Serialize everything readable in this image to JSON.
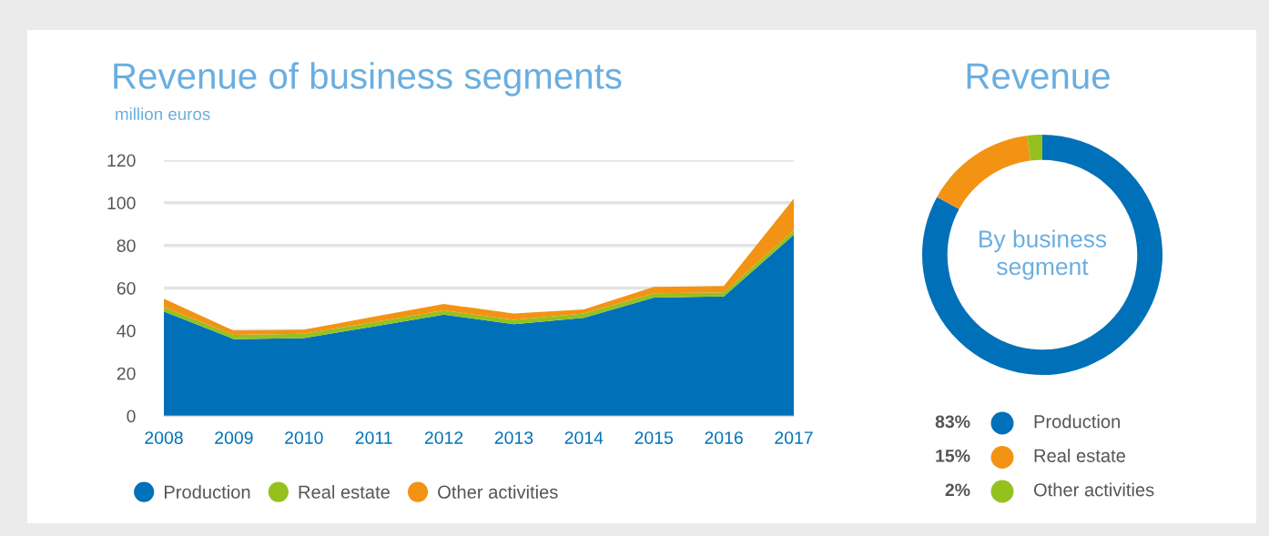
{
  "chart_data": [
    {
      "type": "area",
      "title": "Revenue of business segments",
      "subtitle": "million euros",
      "stacked": true,
      "categories": [
        "2008",
        "2009",
        "2010",
        "2011",
        "2012",
        "2013",
        "2014",
        "2015",
        "2016",
        "2017"
      ],
      "series": [
        {
          "name": "Production",
          "color": "#0071b9",
          "values": [
            49,
            36,
            36.5,
            42,
            47.5,
            43,
            46,
            55.5,
            56,
            85
          ]
        },
        {
          "name": "Real estate",
          "color": "#95c11f",
          "values": [
            2,
            2,
            2,
            2,
            2,
            2,
            2,
            2,
            2,
            2
          ]
        },
        {
          "name": "Other activities",
          "color": "#f39314",
          "values": [
            4,
            2,
            2,
            2.5,
            3,
            3,
            2,
            3,
            3,
            15
          ]
        }
      ],
      "ylim": [
        0,
        120
      ],
      "yticks": [
        0,
        20,
        40,
        60,
        80,
        100,
        120
      ],
      "grid": "y",
      "legend": "bottom"
    },
    {
      "type": "donut",
      "title": "Revenue",
      "annotations": [
        "By business segment"
      ],
      "categories": [
        "Production",
        "Real estate",
        "Other activities"
      ],
      "values": [
        83,
        15,
        2
      ],
      "colors": [
        "#0071b9",
        "#f39314",
        "#95c11f"
      ],
      "value_labels": [
        "83%",
        "15%",
        "2%"
      ],
      "legend": "bottom"
    }
  ]
}
